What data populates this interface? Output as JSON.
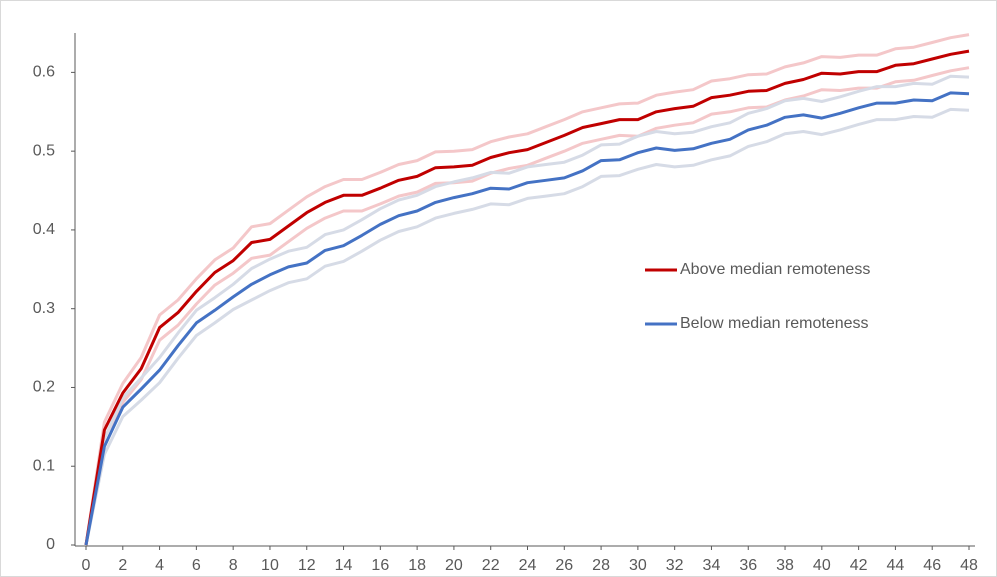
{
  "chart_data": {
    "type": "line",
    "x": [
      0,
      1,
      2,
      3,
      4,
      5,
      6,
      7,
      8,
      9,
      10,
      11,
      12,
      13,
      14,
      15,
      16,
      17,
      18,
      19,
      20,
      21,
      22,
      23,
      24,
      25,
      26,
      27,
      28,
      29,
      30,
      31,
      32,
      33,
      34,
      35,
      36,
      37,
      38,
      39,
      40,
      41,
      42,
      43,
      44,
      45,
      46,
      47,
      48
    ],
    "xlim": [
      0,
      48
    ],
    "xticks": [
      0,
      2,
      4,
      6,
      8,
      10,
      12,
      14,
      16,
      18,
      20,
      22,
      24,
      26,
      28,
      30,
      32,
      34,
      36,
      38,
      40,
      42,
      44,
      46,
      48
    ],
    "ylim": [
      0,
      0.65
    ],
    "yticks": [
      0,
      0.1,
      0.2,
      0.3,
      0.4,
      0.5,
      0.6
    ],
    "grid": false,
    "legend": "right",
    "series": [
      {
        "name": "Above median remoteness",
        "color": "#c00000",
        "band_color": "#f4c7c9",
        "values": [
          0,
          0.146,
          0.193,
          0.224,
          0.276,
          0.295,
          0.322,
          0.346,
          0.361,
          0.384,
          0.388,
          0.405,
          0.422,
          0.435,
          0.444,
          0.444,
          0.453,
          0.463,
          0.468,
          0.479,
          0.48,
          0.482,
          0.492,
          0.498,
          0.502,
          0.511,
          0.52,
          0.53,
          0.535,
          0.54,
          0.54,
          0.55,
          0.554,
          0.557,
          0.568,
          0.571,
          0.576,
          0.577,
          0.586,
          0.591,
          0.599,
          0.598,
          0.601,
          0.601,
          0.609,
          0.611,
          0.617,
          0.623,
          0.627
        ],
        "upper": [
          0,
          0.156,
          0.205,
          0.238,
          0.292,
          0.311,
          0.338,
          0.362,
          0.377,
          0.404,
          0.408,
          0.425,
          0.442,
          0.455,
          0.464,
          0.464,
          0.473,
          0.483,
          0.488,
          0.499,
          0.5,
          0.502,
          0.512,
          0.518,
          0.522,
          0.531,
          0.54,
          0.55,
          0.555,
          0.56,
          0.561,
          0.571,
          0.575,
          0.578,
          0.589,
          0.592,
          0.597,
          0.598,
          0.607,
          0.612,
          0.62,
          0.619,
          0.622,
          0.622,
          0.63,
          0.632,
          0.638,
          0.644,
          0.648
        ],
        "lower": [
          0,
          0.136,
          0.181,
          0.21,
          0.26,
          0.279,
          0.306,
          0.33,
          0.345,
          0.364,
          0.368,
          0.385,
          0.402,
          0.415,
          0.424,
          0.424,
          0.433,
          0.443,
          0.448,
          0.459,
          0.46,
          0.462,
          0.472,
          0.478,
          0.482,
          0.491,
          0.5,
          0.51,
          0.515,
          0.52,
          0.519,
          0.529,
          0.533,
          0.536,
          0.547,
          0.55,
          0.555,
          0.556,
          0.565,
          0.57,
          0.578,
          0.577,
          0.58,
          0.58,
          0.588,
          0.59,
          0.596,
          0.602,
          0.606
        ]
      },
      {
        "name": "Below median remoteness",
        "color": "#4472c4",
        "band_color": "#d6dbe6",
        "values": [
          0,
          0.125,
          0.175,
          0.198,
          0.222,
          0.253,
          0.282,
          0.298,
          0.315,
          0.331,
          0.343,
          0.353,
          0.358,
          0.374,
          0.38,
          0.393,
          0.407,
          0.418,
          0.424,
          0.435,
          0.441,
          0.446,
          0.453,
          0.452,
          0.46,
          0.463,
          0.466,
          0.475,
          0.488,
          0.489,
          0.498,
          0.504,
          0.501,
          0.503,
          0.51,
          0.515,
          0.527,
          0.533,
          0.543,
          0.546,
          0.542,
          0.548,
          0.555,
          0.561,
          0.561,
          0.565,
          0.564,
          0.574,
          0.573
        ],
        "upper": [
          0,
          0.135,
          0.187,
          0.212,
          0.238,
          0.269,
          0.298,
          0.314,
          0.331,
          0.351,
          0.363,
          0.373,
          0.378,
          0.394,
          0.4,
          0.413,
          0.427,
          0.438,
          0.444,
          0.455,
          0.461,
          0.466,
          0.473,
          0.472,
          0.48,
          0.483,
          0.486,
          0.495,
          0.508,
          0.509,
          0.519,
          0.525,
          0.522,
          0.524,
          0.531,
          0.536,
          0.548,
          0.554,
          0.564,
          0.567,
          0.563,
          0.569,
          0.576,
          0.582,
          0.582,
          0.586,
          0.585,
          0.595,
          0.594
        ],
        "lower": [
          0,
          0.115,
          0.163,
          0.184,
          0.206,
          0.237,
          0.266,
          0.282,
          0.299,
          0.311,
          0.323,
          0.333,
          0.338,
          0.354,
          0.36,
          0.373,
          0.387,
          0.398,
          0.404,
          0.415,
          0.421,
          0.426,
          0.433,
          0.432,
          0.44,
          0.443,
          0.446,
          0.455,
          0.468,
          0.469,
          0.477,
          0.483,
          0.48,
          0.482,
          0.489,
          0.494,
          0.506,
          0.512,
          0.522,
          0.525,
          0.521,
          0.527,
          0.534,
          0.54,
          0.54,
          0.544,
          0.543,
          0.553,
          0.552
        ]
      }
    ]
  }
}
